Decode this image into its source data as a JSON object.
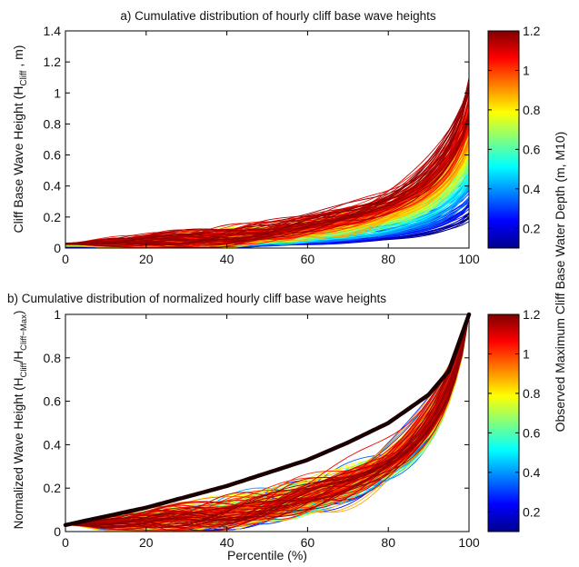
{
  "chart_data": [
    {
      "type": "line",
      "title": "a) Cumulative distribution of hourly cliff base wave heights",
      "xlabel": "",
      "ylabel_main": "Cliff Base Wave Height (H",
      "ylabel_sub": "Cliff",
      "ylabel_end": " , m)",
      "xlim": [
        0,
        100
      ],
      "ylim": [
        0,
        1.4
      ],
      "x_ticks": [
        0,
        20,
        40,
        60,
        80,
        100
      ],
      "x_tick_labels": [
        "0",
        "20",
        "40",
        "60",
        "80",
        "100"
      ],
      "y_ticks": [
        0,
        0.2,
        0.4,
        0.6,
        0.8,
        1,
        1.2,
        1.4
      ],
      "y_tick_labels": [
        "0",
        "0.2",
        "0.4",
        "0.6",
        "0.8",
        "1",
        "1.2",
        "1.4"
      ],
      "grid": false,
      "series_count": 220,
      "x_percentile": [
        0,
        5,
        10,
        20,
        30,
        40,
        50,
        60,
        70,
        80,
        90,
        95,
        98,
        100
      ],
      "percentile_profile_sample": {
        "depth_1_2": [
          0.01,
          0.03,
          0.05,
          0.08,
          0.11,
          0.15,
          0.2,
          0.25,
          0.31,
          0.38,
          0.48,
          0.57,
          0.68,
          1.05
        ],
        "depth_0_8": [
          0.01,
          0.02,
          0.03,
          0.05,
          0.08,
          0.11,
          0.14,
          0.18,
          0.22,
          0.27,
          0.34,
          0.4,
          0.48,
          0.75
        ],
        "depth_0_5": [
          0.01,
          0.01,
          0.02,
          0.03,
          0.05,
          0.07,
          0.09,
          0.11,
          0.14,
          0.17,
          0.21,
          0.25,
          0.3,
          0.45
        ],
        "depth_0_1": [
          0.0,
          0.01,
          0.01,
          0.02,
          0.02,
          0.03,
          0.04,
          0.05,
          0.06,
          0.07,
          0.09,
          0.11,
          0.13,
          0.2
        ]
      },
      "color_encoding": "Observed Maximum Cliff Base Water Depth (m, M10)"
    },
    {
      "type": "line",
      "title": "b) Cumulative distribution of normalized hourly cliff base wave heights",
      "xlabel": "Percentile (%)",
      "ylabel_main": "Normalized Wave Height (H",
      "ylabel_sub": "Cliff",
      "ylabel_mid": "/H",
      "ylabel_sub2": "Cliff−Max",
      "ylabel_end": ")",
      "xlim": [
        0,
        100
      ],
      "ylim": [
        0,
        1
      ],
      "x_ticks": [
        0,
        20,
        40,
        60,
        80,
        100
      ],
      "x_tick_labels": [
        "0",
        "20",
        "40",
        "60",
        "80",
        "100"
      ],
      "y_ticks": [
        0,
        0.2,
        0.4,
        0.6,
        0.8,
        1
      ],
      "y_tick_labels": [
        "0",
        "0.2",
        "0.4",
        "0.6",
        "0.8",
        "1"
      ],
      "grid": false,
      "series_count": 220,
      "mean_curve": {
        "x": [
          0,
          10,
          20,
          30,
          40,
          50,
          60,
          70,
          80,
          90,
          95,
          100
        ],
        "y": [
          0.03,
          0.07,
          0.11,
          0.16,
          0.21,
          0.27,
          0.33,
          0.41,
          0.5,
          0.63,
          0.74,
          1.0
        ]
      },
      "color_encoding": "Observed Maximum Cliff Base Water Depth (m, M10)"
    }
  ],
  "colorbar": {
    "label": "Observed Maximum Cliff Base Water Depth (m, M10)",
    "range": [
      0.1,
      1.2
    ],
    "ticks": [
      0.2,
      0.4,
      0.6,
      0.8,
      1,
      1.2
    ],
    "tick_labels": [
      "0.2",
      "0.4",
      "0.6",
      "0.8",
      "1",
      "1.2"
    ],
    "colormap": "jet",
    "colors": [
      "#00008f",
      "#0000ff",
      "#00ffff",
      "#ffff00",
      "#ff0000",
      "#800000"
    ]
  }
}
